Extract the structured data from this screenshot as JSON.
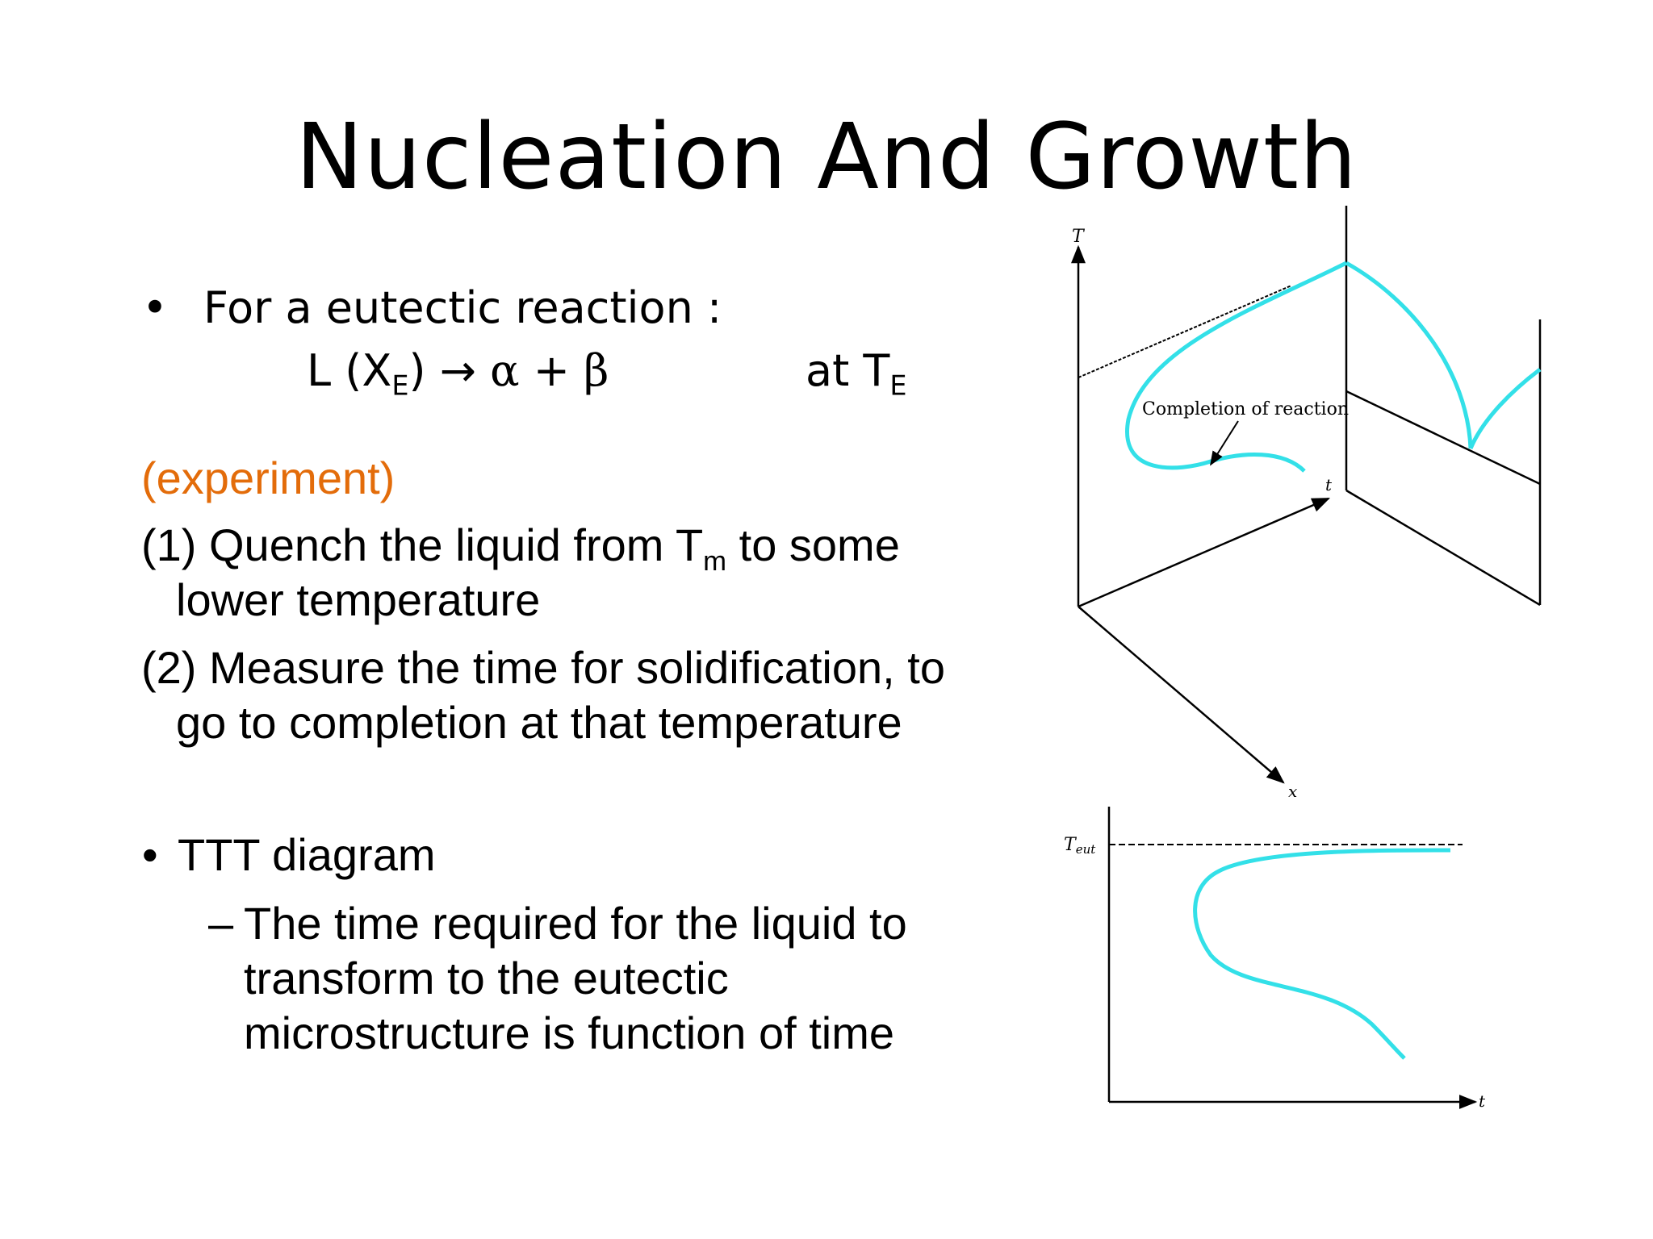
{
  "title": "Nucleation And Growth",
  "bullet1": {
    "bullet": "•",
    "text": "For a eutectic reaction :",
    "eq_L": "L (X",
    "eq_sub": "E",
    "eq_close": ") ",
    "eq_arrow": "→",
    "eq_alpha": "α",
    "eq_plus": " + ",
    "eq_beta": "β",
    "at_label": "at T",
    "at_sub": "E"
  },
  "experiment_label": "(experiment)",
  "step1": {
    "part1": "(1) Quench the liquid from T",
    "sub": "m",
    "part2": " to some",
    "line2": "lower temperature"
  },
  "step2": {
    "line1": "(2) Measure the time for solidification, to",
    "line2": "go to completion at that temperature"
  },
  "bullet2": {
    "bullet": "•",
    "text": "TTT diagram",
    "dash": "–",
    "sub_line1": "The time required for the liquid to",
    "sub_line2": "transform to the eutectic",
    "sub_line3": "microstructure is function of time"
  },
  "diagram_top": {
    "axis_T": "T",
    "axis_t": "t",
    "axis_x": "x",
    "annotation": "Completion of reaction",
    "curve_color": "#33e0e8"
  },
  "diagram_bottom": {
    "axis_Teut": "T",
    "axis_Teut_sub": "eut",
    "axis_t": "t",
    "curve_color": "#33e0e8"
  }
}
